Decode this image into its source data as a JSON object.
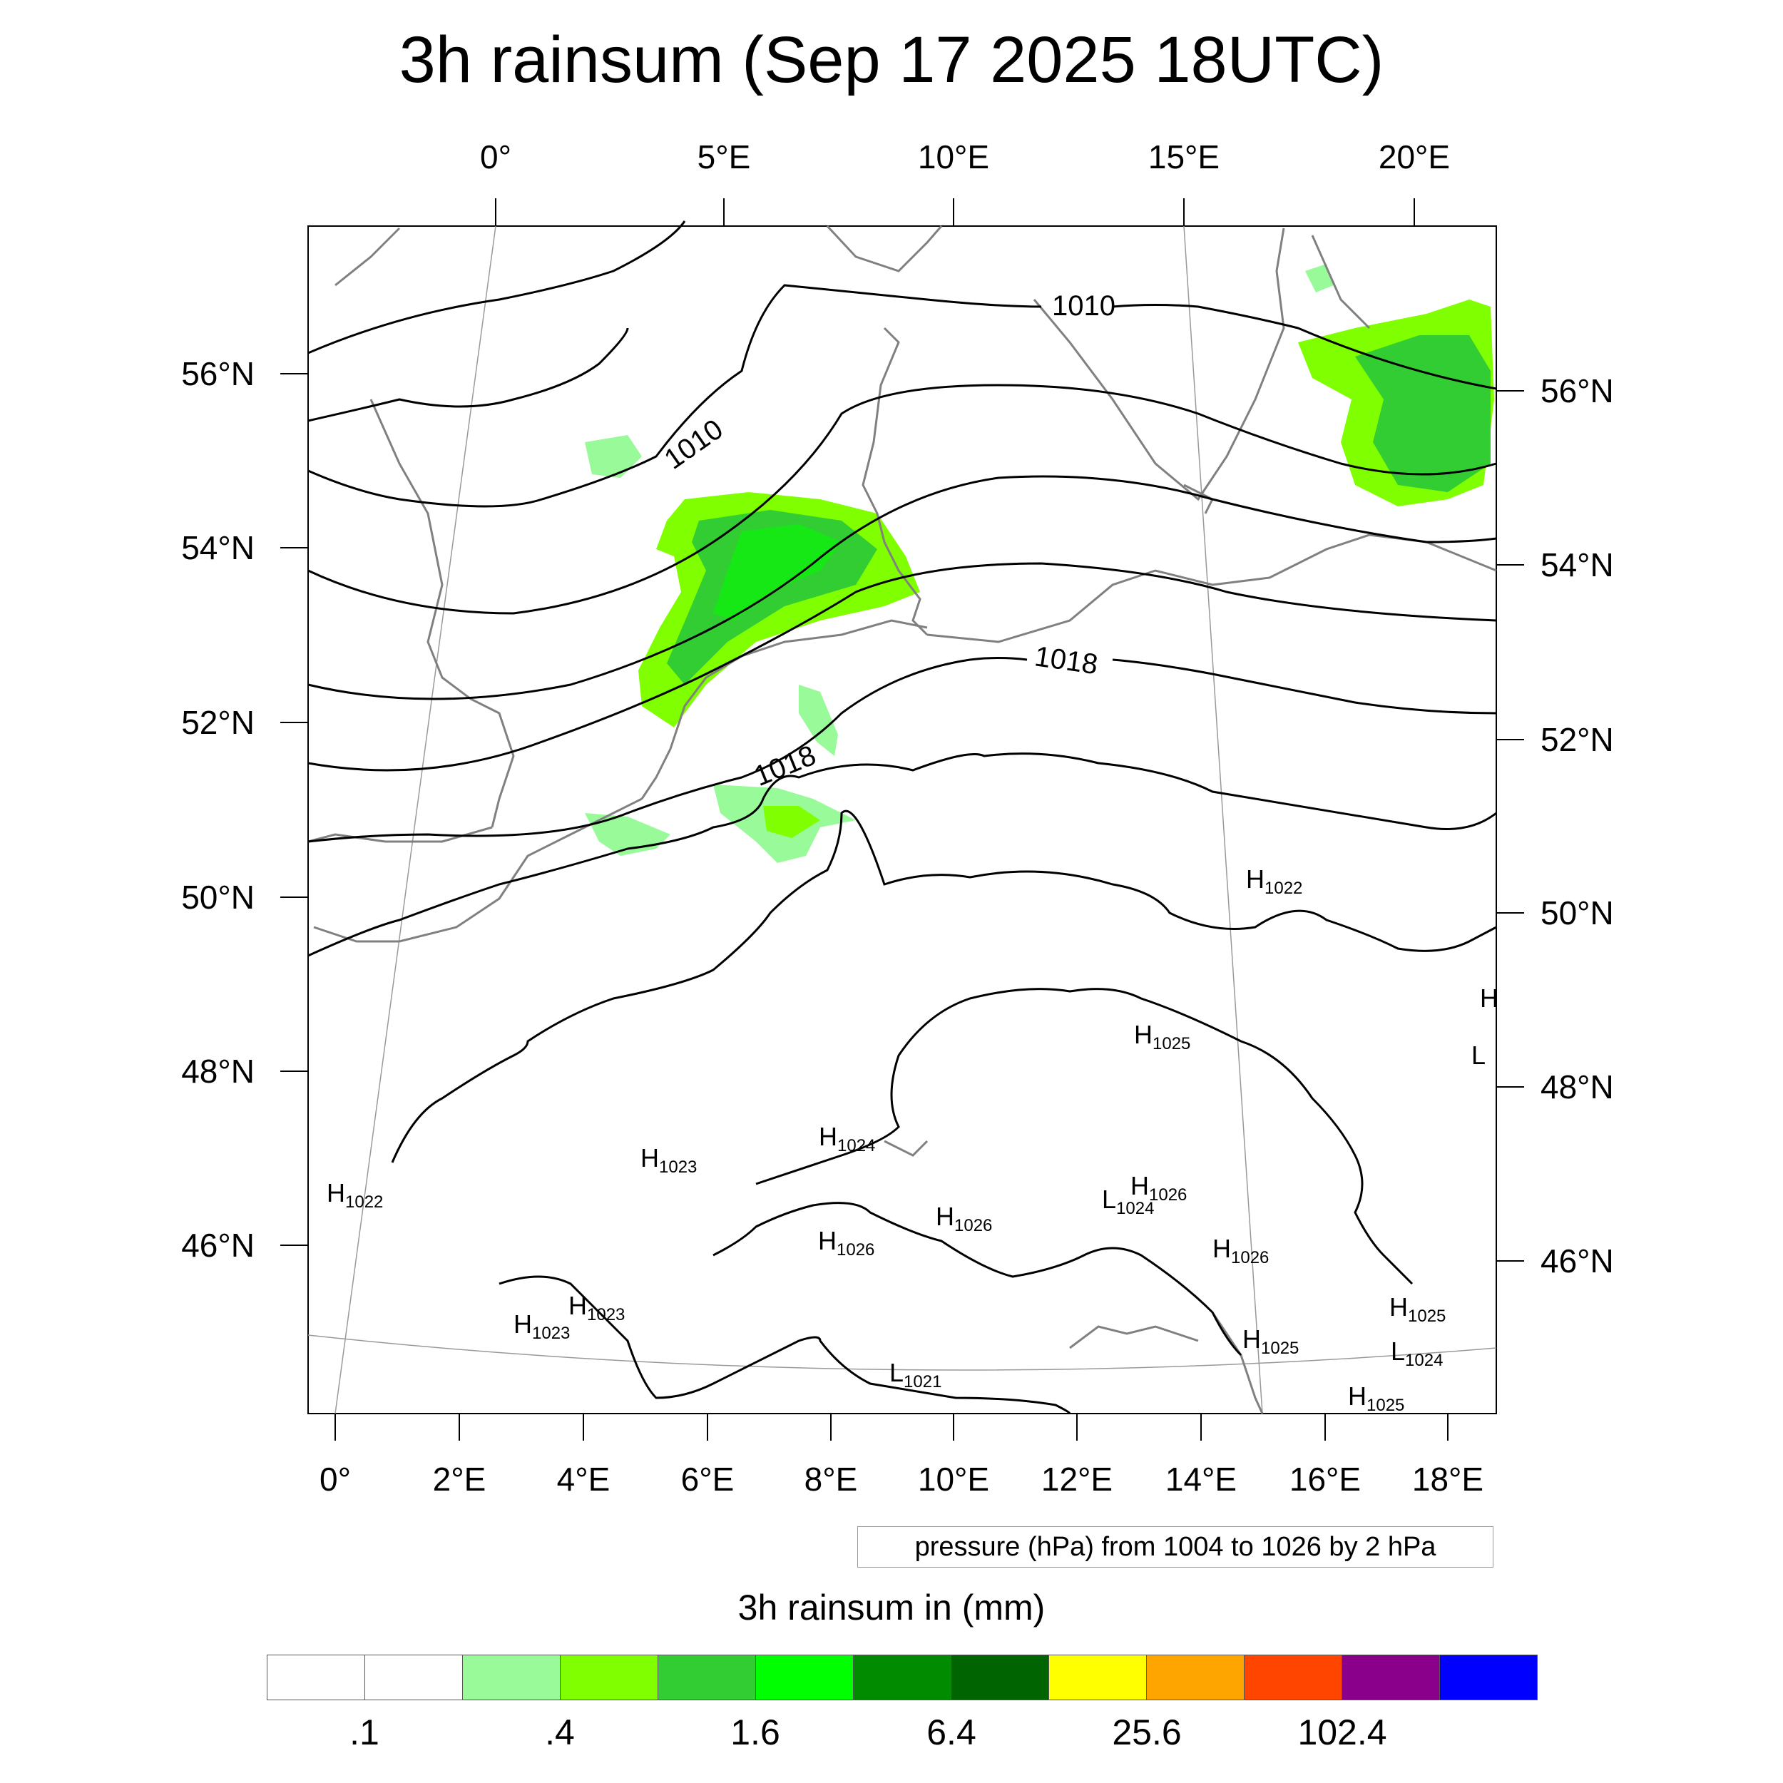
{
  "title": "3h rainsum (Sep 17 2025 18UTC)",
  "map": {
    "top_lon_labels": [
      "0°",
      "5°E",
      "10°E",
      "15°E",
      "20°E"
    ],
    "bottom_lon_labels": [
      "0°",
      "2°E",
      "4°E",
      "6°E",
      "8°E",
      "10°E",
      "12°E",
      "14°E",
      "16°E",
      "18°E"
    ],
    "left_lat_labels": [
      "56°N",
      "54°N",
      "52°N",
      "50°N",
      "48°N",
      "46°N"
    ],
    "right_lat_labels": [
      "56°N",
      "54°N",
      "52°N",
      "50°N",
      "48°N",
      "46°N"
    ],
    "isobar_labels": [
      "1010",
      "1010",
      "1018",
      "1018"
    ],
    "pressure_centers": [
      {
        "letter": "H",
        "value": "1022"
      },
      {
        "letter": "H",
        "value": "1025"
      },
      {
        "letter": "L",
        "value": ""
      },
      {
        "letter": "H",
        "value": ""
      },
      {
        "letter": "H",
        "value": "1024"
      },
      {
        "letter": "H",
        "value": "1023"
      },
      {
        "letter": "H",
        "value": "1026"
      },
      {
        "letter": "L",
        "value": "1024"
      },
      {
        "letter": "H",
        "value": "1022"
      },
      {
        "letter": "H",
        "value": "1026"
      },
      {
        "letter": "H",
        "value": "1026"
      },
      {
        "letter": "H",
        "value": "1026"
      },
      {
        "letter": "H",
        "value": "1023"
      },
      {
        "letter": "H",
        "value": "1023"
      },
      {
        "letter": "H",
        "value": "1025"
      },
      {
        "letter": "H",
        "value": "1025"
      },
      {
        "letter": "L",
        "value": "1024"
      },
      {
        "letter": "L",
        "value": "1021"
      },
      {
        "letter": "H",
        "value": "1025"
      }
    ]
  },
  "contour_info": "pressure (hPa) from 1004 to 1026 by 2 hPa",
  "colorbar": {
    "title": "3h rainsum in (mm)",
    "colors": [
      "#ffffff",
      "#ffffff",
      "#99fa99",
      "#80ff00",
      "#32cd32",
      "#00ff00",
      "#008b00",
      "#006400",
      "#ffff00",
      "#ffa500",
      "#ff4500",
      "#8b008b",
      "#0000ff"
    ],
    "labels": [
      ".1",
      ".4",
      "1.6",
      "6.4",
      "25.6",
      "102.4"
    ]
  }
}
